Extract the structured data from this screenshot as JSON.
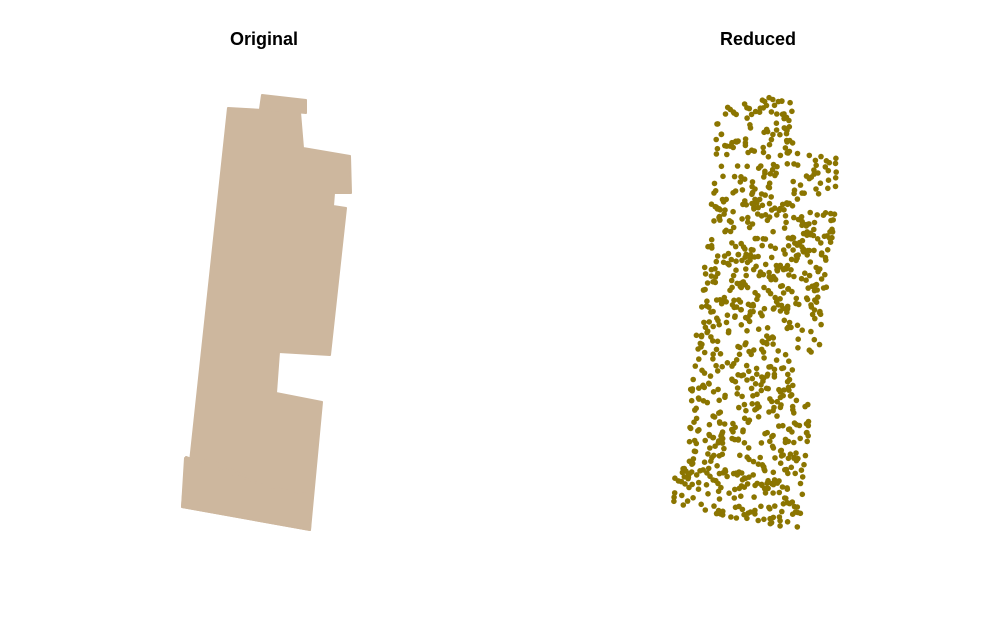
{
  "titles": {
    "left": "Original",
    "right": "Reduced"
  },
  "colors": {
    "original_fill": "#CDB79E",
    "reduced_points": "#8B7500",
    "background": "#FFFFFF"
  },
  "chart_data": [
    {
      "type": "area",
      "title": "Original",
      "description_of_mark": "filled building-footprint polygon",
      "grid": false,
      "axes": false
    },
    {
      "type": "scatter",
      "title": "Reduced",
      "point_count_approx": 900,
      "grid": false,
      "axes": false
    }
  ]
}
